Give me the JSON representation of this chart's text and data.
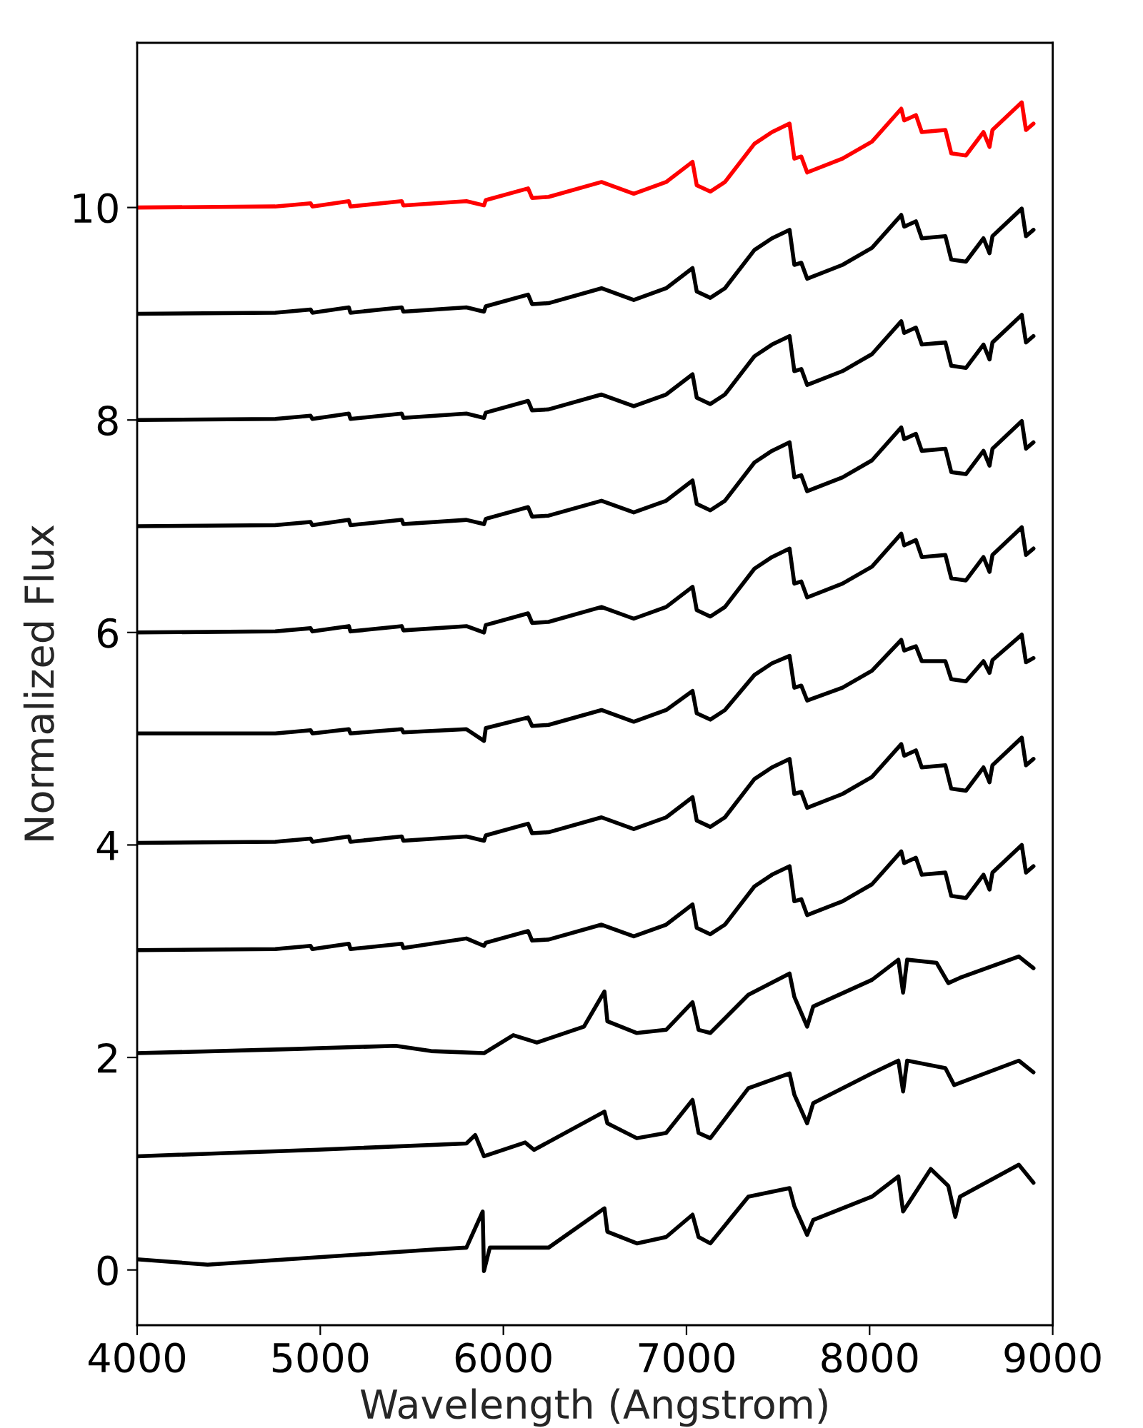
{
  "chart_data": {
    "type": "line",
    "xlabel": "Wavelength (Angstrom)",
    "ylabel": "Normalized Flux",
    "xlim": [
      4000,
      9000
    ],
    "xticks": [
      4000,
      5000,
      6000,
      7000,
      8000,
      9000
    ],
    "ylim": [
      -0.52,
      11.55
    ],
    "yticks": [
      0,
      2,
      4,
      6,
      8,
      10
    ],
    "grid": false,
    "marker": "none",
    "line_style": "solid",
    "x": [
      4000,
      4754,
      4947,
      4957,
      5156,
      5165,
      5445,
      5454,
      5798,
      5894,
      5904,
      6135,
      6157,
      6247,
      6536,
      6712,
      6889,
      7033,
      7056,
      7130,
      7210,
      7371,
      7467,
      7563,
      7589,
      7627,
      7659,
      7852,
      8013,
      8173,
      8189,
      8253,
      8285,
      8414,
      8446,
      8526,
      8622,
      8655,
      8671,
      8831,
      8854,
      8895
    ],
    "series": [
      {
        "color": "#ff0000",
        "values": [
          10.0,
          10.01,
          10.04,
          10.01,
          10.06,
          10.01,
          10.06,
          10.02,
          10.06,
          10.02,
          10.07,
          10.18,
          10.09,
          10.1,
          10.24,
          10.13,
          10.24,
          10.43,
          10.21,
          10.15,
          10.24,
          10.6,
          10.71,
          10.79,
          10.46,
          10.48,
          10.33,
          10.46,
          10.62,
          10.93,
          10.82,
          10.87,
          10.71,
          10.73,
          10.51,
          10.49,
          10.71,
          10.57,
          10.73,
          10.99,
          10.73,
          10.79
        ]
      },
      {
        "color": "#000000",
        "values": [
          9.0,
          9.01,
          9.04,
          9.01,
          9.06,
          9.01,
          9.06,
          9.02,
          9.06,
          9.02,
          9.07,
          9.18,
          9.09,
          9.1,
          9.24,
          9.13,
          9.24,
          9.43,
          9.21,
          9.15,
          9.24,
          9.6,
          9.71,
          9.79,
          9.46,
          9.48,
          9.33,
          9.46,
          9.62,
          9.93,
          9.82,
          9.87,
          9.71,
          9.73,
          9.51,
          9.49,
          9.71,
          9.57,
          9.73,
          9.99,
          9.73,
          9.79
        ]
      },
      {
        "color": "#000000",
        "values": [
          8.0,
          8.01,
          8.04,
          8.01,
          8.06,
          8.01,
          8.06,
          8.02,
          8.06,
          8.02,
          8.07,
          8.18,
          8.09,
          8.1,
          8.24,
          8.13,
          8.24,
          8.43,
          8.21,
          8.15,
          8.24,
          8.6,
          8.71,
          8.79,
          8.46,
          8.48,
          8.33,
          8.46,
          8.62,
          8.93,
          8.82,
          8.87,
          8.71,
          8.73,
          8.51,
          8.49,
          8.71,
          8.57,
          8.73,
          8.99,
          8.73,
          8.79
        ]
      },
      {
        "color": "#000000",
        "values": [
          7.0,
          7.01,
          7.04,
          7.01,
          7.06,
          7.01,
          7.06,
          7.02,
          7.06,
          7.02,
          7.07,
          7.18,
          7.09,
          7.1,
          7.24,
          7.13,
          7.24,
          7.43,
          7.21,
          7.15,
          7.24,
          7.6,
          7.71,
          7.79,
          7.46,
          7.48,
          7.33,
          7.46,
          7.62,
          7.93,
          7.82,
          7.87,
          7.71,
          7.73,
          7.51,
          7.49,
          7.71,
          7.57,
          7.73,
          7.99,
          7.73,
          7.79
        ]
      },
      {
        "color": "#000000",
        "values": [
          6.0,
          6.01,
          6.04,
          6.01,
          6.06,
          6.01,
          6.06,
          6.02,
          6.06,
          6.0,
          6.07,
          6.18,
          6.09,
          6.1,
          6.24,
          6.13,
          6.24,
          6.43,
          6.21,
          6.15,
          6.24,
          6.6,
          6.71,
          6.79,
          6.46,
          6.48,
          6.33,
          6.46,
          6.62,
          6.93,
          6.82,
          6.87,
          6.71,
          6.73,
          6.51,
          6.49,
          6.71,
          6.57,
          6.73,
          6.99,
          6.73,
          6.79
        ]
      },
      {
        "color": "#000000",
        "values": [
          5.05,
          5.05,
          5.08,
          5.05,
          5.09,
          5.05,
          5.09,
          5.06,
          5.09,
          4.98,
          5.1,
          5.2,
          5.12,
          5.13,
          5.27,
          5.16,
          5.27,
          5.45,
          5.24,
          5.18,
          5.27,
          5.6,
          5.71,
          5.78,
          5.48,
          5.5,
          5.36,
          5.48,
          5.64,
          5.93,
          5.83,
          5.87,
          5.73,
          5.73,
          5.56,
          5.54,
          5.73,
          5.62,
          5.74,
          5.98,
          5.72,
          5.76
        ]
      },
      {
        "color": "#000000",
        "values": [
          4.02,
          4.03,
          4.06,
          4.03,
          4.08,
          4.03,
          4.08,
          4.04,
          4.08,
          4.04,
          4.09,
          4.2,
          4.11,
          4.12,
          4.26,
          4.15,
          4.26,
          4.45,
          4.23,
          4.17,
          4.26,
          4.62,
          4.73,
          4.81,
          4.48,
          4.5,
          4.35,
          4.48,
          4.64,
          4.95,
          4.84,
          4.89,
          4.73,
          4.75,
          4.53,
          4.51,
          4.73,
          4.59,
          4.75,
          5.01,
          4.75,
          4.81
        ]
      },
      {
        "color": "#000000",
        "values": [
          3.01,
          3.02,
          3.05,
          3.02,
          3.07,
          3.02,
          3.07,
          3.03,
          3.12,
          3.05,
          3.08,
          3.19,
          3.1,
          3.11,
          3.25,
          3.14,
          3.25,
          3.44,
          3.22,
          3.16,
          3.25,
          3.61,
          3.72,
          3.8,
          3.47,
          3.49,
          3.34,
          3.47,
          3.63,
          3.94,
          3.83,
          3.88,
          3.72,
          3.74,
          3.52,
          3.5,
          3.72,
          3.58,
          3.74,
          4.0,
          3.74,
          3.8
        ]
      },
      {
        "color": "#000000",
        "x": [
          4000,
          4867,
          5412,
          5605,
          5894,
          6054,
          6183,
          6440,
          6552,
          6568,
          6729,
          6889,
          7033,
          7066,
          7130,
          7338,
          7563,
          7589,
          7659,
          7692,
          8013,
          8157,
          8183,
          8205,
          8366,
          8430,
          8494,
          8815,
          8895
        ],
        "values": [
          2.04,
          2.08,
          2.11,
          2.06,
          2.04,
          2.21,
          2.14,
          2.29,
          2.62,
          2.34,
          2.23,
          2.26,
          2.52,
          2.26,
          2.23,
          2.59,
          2.79,
          2.57,
          2.29,
          2.48,
          2.73,
          2.92,
          2.61,
          2.92,
          2.89,
          2.7,
          2.75,
          2.95,
          2.84
        ]
      },
      {
        "color": "#000000",
        "x": [
          4000,
          4963,
          5798,
          5846,
          5894,
          6119,
          6167,
          6552,
          6568,
          6729,
          6889,
          7033,
          7066,
          7130,
          7338,
          7563,
          7589,
          7659,
          7692,
          8013,
          8157,
          8183,
          8205,
          8414,
          8462,
          8815,
          8895
        ],
        "values": [
          1.07,
          1.13,
          1.19,
          1.27,
          1.07,
          1.2,
          1.13,
          1.49,
          1.38,
          1.24,
          1.29,
          1.6,
          1.29,
          1.24,
          1.71,
          1.85,
          1.65,
          1.38,
          1.57,
          1.85,
          1.97,
          1.68,
          1.97,
          1.9,
          1.74,
          1.97,
          1.86
        ]
      },
      {
        "color": "#000000",
        "x": [
          4000,
          4385,
          5605,
          5798,
          5887,
          5894,
          5926,
          6247,
          6552,
          6568,
          6729,
          6889,
          7033,
          7066,
          7130,
          7338,
          7563,
          7589,
          7659,
          7692,
          8013,
          8157,
          8183,
          8334,
          8430,
          8468,
          8494,
          8815,
          8895
        ],
        "values": [
          0.1,
          0.05,
          0.19,
          0.21,
          0.55,
          -0.01,
          0.21,
          0.21,
          0.58,
          0.36,
          0.25,
          0.31,
          0.52,
          0.31,
          0.25,
          0.69,
          0.77,
          0.6,
          0.33,
          0.47,
          0.69,
          0.88,
          0.55,
          0.95,
          0.79,
          0.5,
          0.69,
          0.99,
          0.82
        ]
      }
    ]
  }
}
